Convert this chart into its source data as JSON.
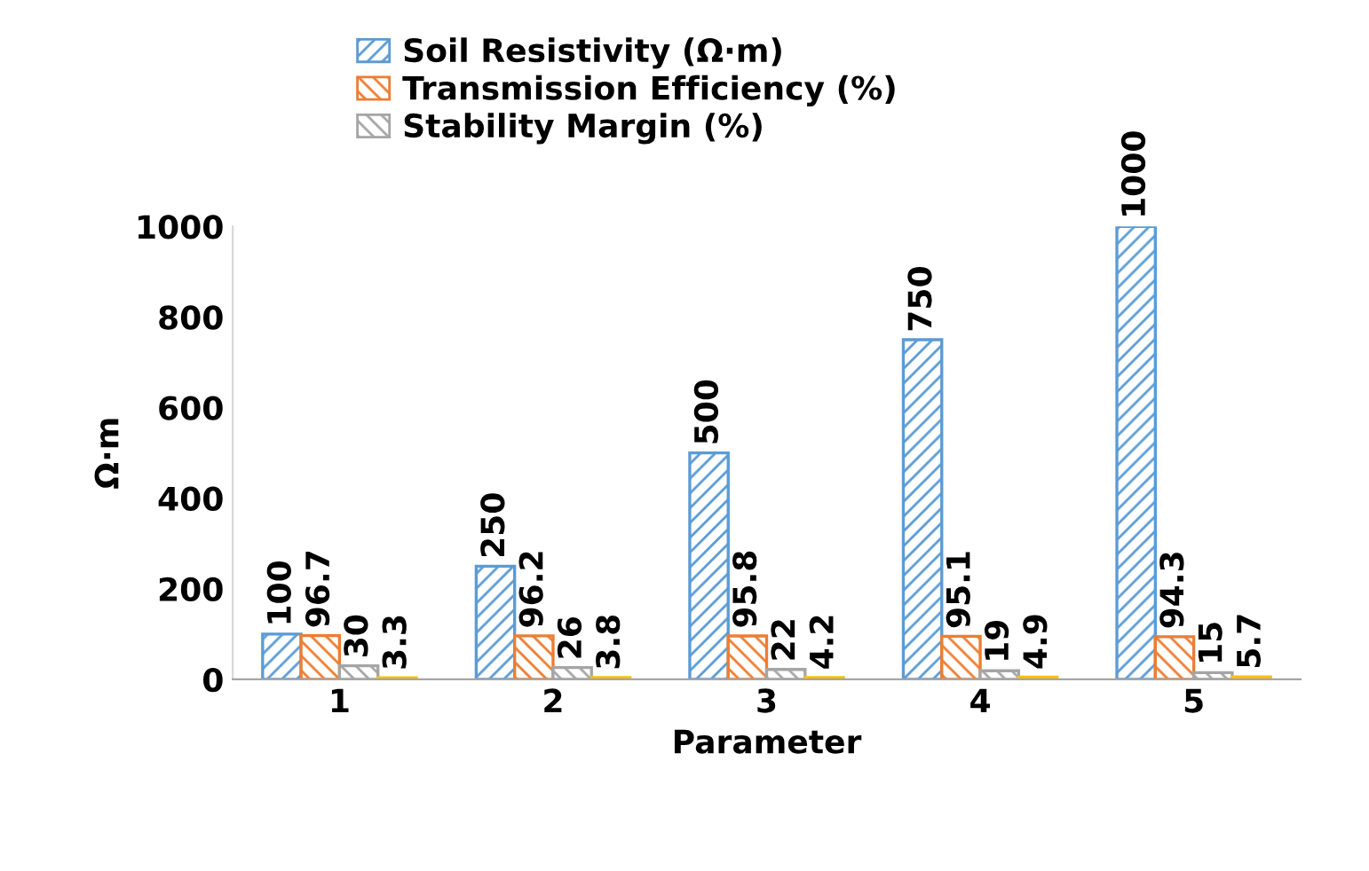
{
  "chart_data": {
    "type": "bar",
    "xlabel": "Parameter",
    "ylabel": "Ω·m",
    "categories": [
      "1",
      "2",
      "3",
      "4",
      "5"
    ],
    "series": [
      {
        "name": "Soil Resistivity (Ω·m)",
        "color": "#5b9bd5",
        "values": [
          100,
          250,
          500,
          750,
          1000
        ]
      },
      {
        "name": "Transmission Efficiency (%)",
        "color": "#ed7d31",
        "values": [
          96.7,
          96.2,
          95.8,
          95.1,
          94.3
        ]
      },
      {
        "name": "Stability Margin (%)",
        "color": "#a5a5a5",
        "values": [
          30,
          26,
          22,
          19,
          15
        ]
      },
      {
        "color": "#ffc000",
        "values": [
          3.3,
          3.8,
          4.2,
          4.9,
          5.7
        ]
      }
    ],
    "ylim": [
      0,
      1000
    ],
    "yticks": [
      0,
      200,
      400,
      600,
      800,
      1000
    ],
    "data_labels": true,
    "legend": "top",
    "grid": false
  }
}
